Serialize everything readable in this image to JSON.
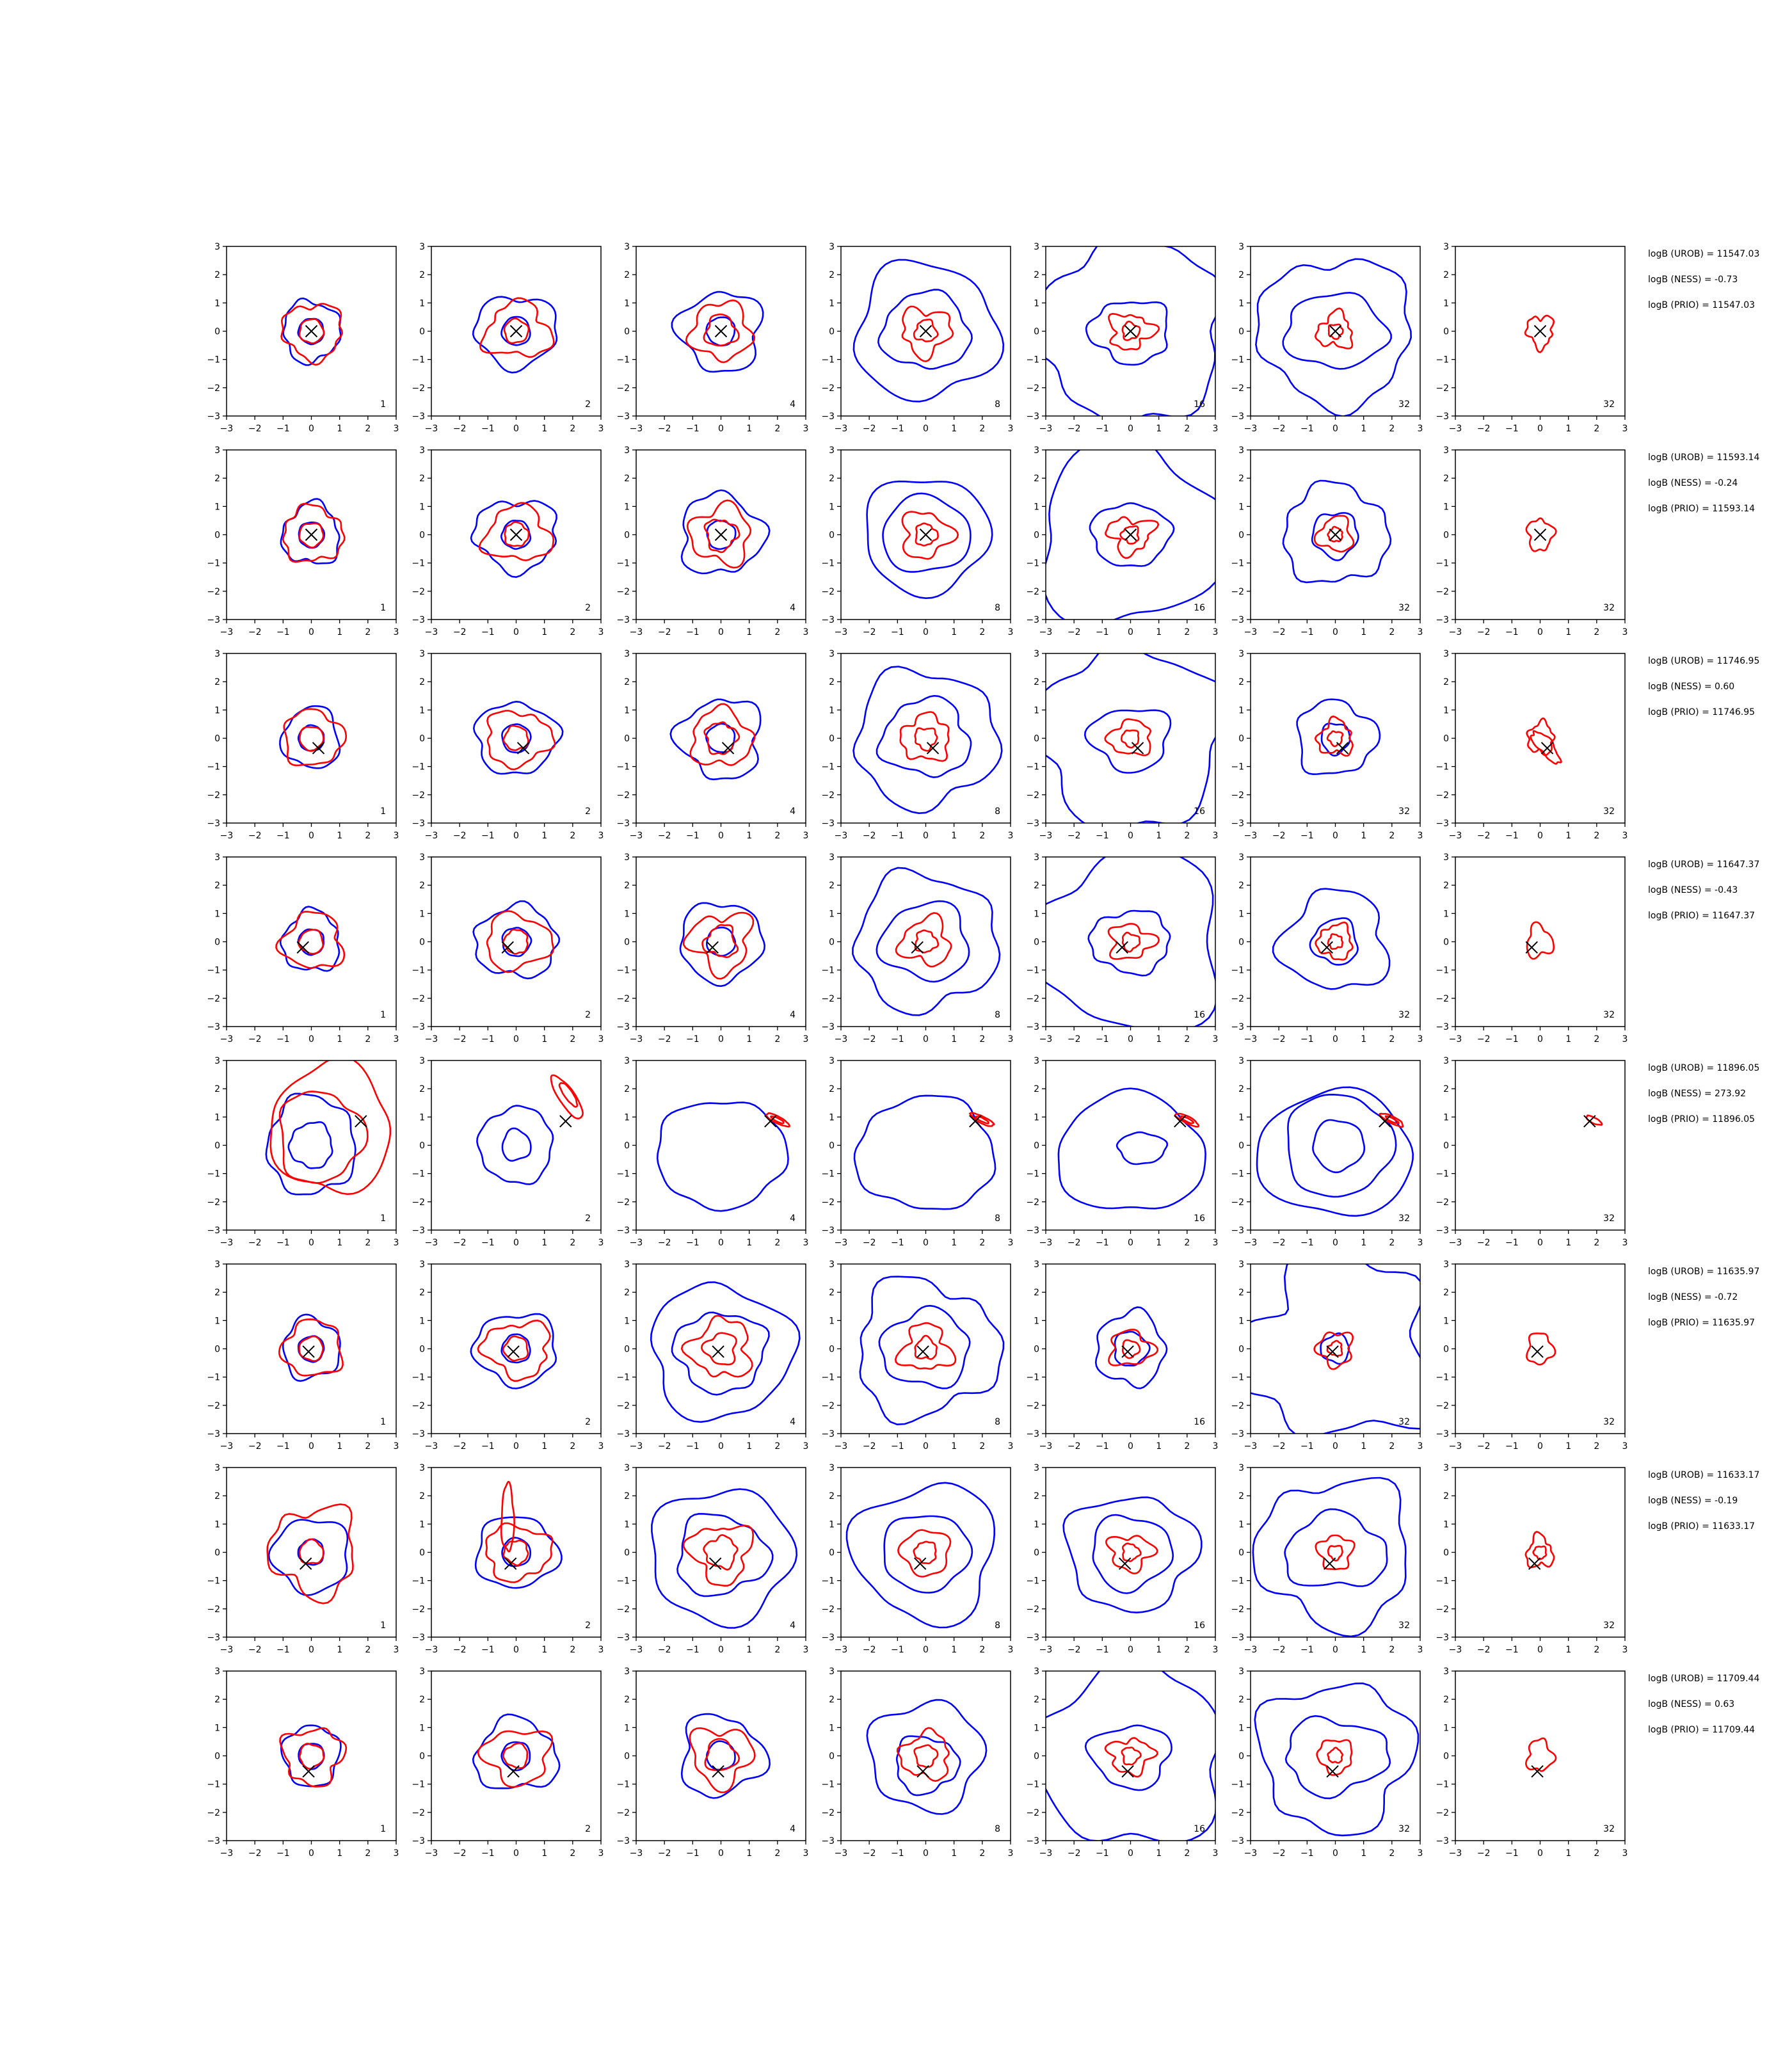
{
  "chart_data": {
    "type": "contour-grid",
    "rows": 8,
    "cols": 7,
    "panel_labels": [
      "1",
      "2",
      "4",
      "8",
      "16",
      "32",
      "32"
    ],
    "xlim": [
      -3,
      3
    ],
    "ylim": [
      -3,
      3
    ],
    "xticks": [
      "−3",
      "−2",
      "−1",
      "0",
      "1",
      "2",
      "3"
    ],
    "yticks": [
      "3",
      "2",
      "1",
      "0",
      "−1",
      "−2",
      "−3"
    ],
    "colors": {
      "blue": "#0000ff",
      "red": "#ff0000",
      "marker": "#000000"
    },
    "marker_positions": [
      [
        0.0,
        0.0
      ],
      [
        0.0,
        0.0
      ],
      [
        0.25,
        -0.35
      ],
      [
        -0.3,
        -0.2
      ],
      [
        1.75,
        0.85
      ],
      [
        -0.1,
        -0.1
      ],
      [
        -0.2,
        -0.4
      ],
      [
        -0.1,
        -0.55
      ]
    ],
    "stats": [
      [
        "logB (UROB) = 11547.03",
        "logB (NESS) = -0.73",
        "logB (PRIO) = 11547.03"
      ],
      [
        "logB (UROB) = 11593.14",
        "logB (NESS) = -0.24",
        "logB (PRIO) = 11593.14"
      ],
      [
        "logB (UROB) = 11746.95",
        "logB (NESS) = 0.60",
        "logB (PRIO) = 11746.95"
      ],
      [
        "logB (UROB) = 11647.37",
        "logB (NESS) = -0.43",
        "logB (PRIO) = 11647.37"
      ],
      [
        "logB (UROB) = 11896.05",
        "logB (NESS) = 273.92",
        "logB (PRIO) = 11896.05"
      ],
      [
        "logB (UROB) = 11635.97",
        "logB (NESS) = -0.72",
        "logB (PRIO) = 11635.97"
      ],
      [
        "logB (UROB) = 11633.17",
        "logB (NESS) = -0.19",
        "logB (PRIO) = 11633.17"
      ],
      [
        "logB (UROB) = 11709.44",
        "logB (NESS) = 0.63",
        "logB (PRIO) = 11709.44"
      ]
    ]
  }
}
